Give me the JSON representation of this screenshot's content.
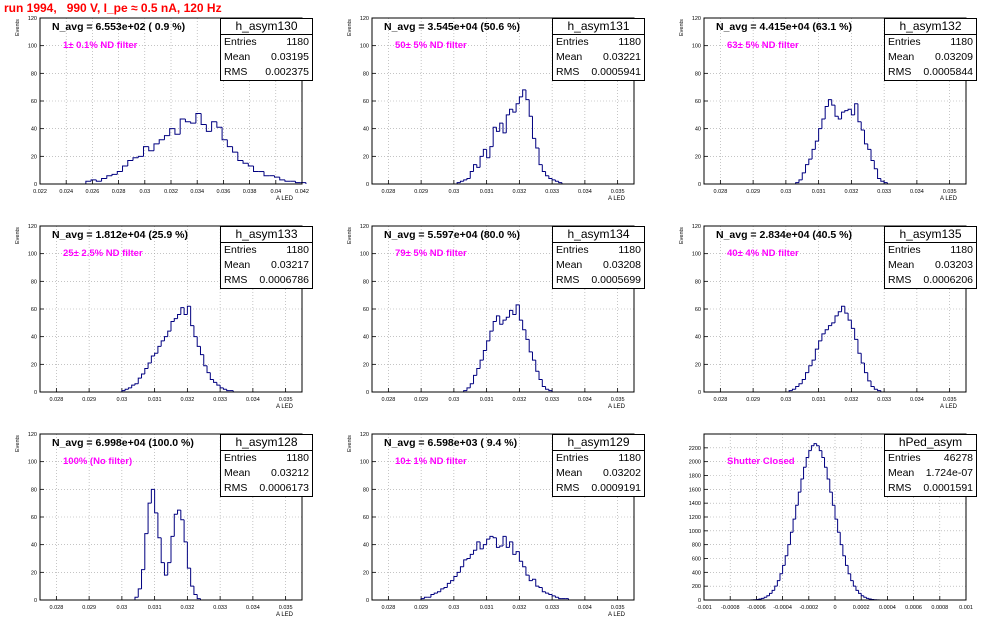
{
  "run_title": "run 1994,   990 V, I_pe ≈ 0.5 nA, 120 Hz",
  "colors": {
    "hist": "#000080",
    "title": "#ff0000",
    "filter_text": "#ff00ff",
    "grid": "#a0a0a0"
  },
  "chart_data": [
    {
      "type": "bar",
      "name": "h_asym130",
      "n_avg_text": "N_avg = 6.553e+02 ( 0.9 %)",
      "filter_text": "1± 0.1% ND filter",
      "stats": {
        "entries_label": "Entries",
        "entries": "1180",
        "mean_label": "Mean",
        "mean": "0.03195",
        "rms_label": "RMS",
        "rms": "0.002375"
      },
      "ylabel": "Events",
      "xlabel": "A_LED",
      "xlim": [
        0.022,
        0.042
      ],
      "ylim": [
        0,
        120
      ],
      "xticks": [
        "0.022",
        "0.024",
        "0.026",
        "0.028",
        "0.03",
        "0.032",
        "0.034",
        "0.036",
        "0.038",
        "0.04",
        "0.042"
      ],
      "yticks": [
        "0",
        "20",
        "40",
        "60",
        "80",
        "100",
        "120"
      ],
      "grid": true,
      "bin_start": 0.0255,
      "bin_width": 0.0004,
      "values": [
        2,
        3,
        2,
        4,
        6,
        7,
        9,
        13,
        17,
        19,
        20,
        27,
        24,
        29,
        32,
        35,
        40,
        36,
        47,
        45,
        44,
        51,
        43,
        38,
        45,
        41,
        32,
        27,
        23,
        17,
        15,
        13,
        9,
        9,
        6,
        6,
        5,
        3,
        2,
        2,
        1,
        1
      ]
    },
    {
      "type": "bar",
      "name": "h_asym131",
      "n_avg_text": "N_avg = 3.545e+04 (50.6 %)",
      "filter_text": "50± 5% ND filter",
      "stats": {
        "entries_label": "Entries",
        "entries": "1180",
        "mean_label": "Mean",
        "mean": "0.03221",
        "rms_label": "RMS",
        "rms": "0.0005941"
      },
      "ylabel": "Events",
      "xlabel": "A_LED",
      "xlim": [
        0.0275,
        0.0355
      ],
      "ylim": [
        0,
        120
      ],
      "xticks": [
        "0.028",
        "0.029",
        "0.03",
        "0.031",
        "0.032",
        "0.033",
        "0.034",
        "0.035"
      ],
      "yticks": [
        "0",
        "20",
        "40",
        "60",
        "80",
        "100",
        "120"
      ],
      "grid": true,
      "bin_start": 0.0301,
      "bin_width": 0.0001,
      "values": [
        1,
        2,
        3,
        4,
        9,
        14,
        12,
        20,
        25,
        19,
        27,
        41,
        38,
        44,
        37,
        50,
        54,
        52,
        58,
        63,
        68,
        61,
        49,
        33,
        26,
        14,
        9,
        6,
        4,
        3,
        2,
        1
      ]
    },
    {
      "type": "bar",
      "name": "h_asym132",
      "n_avg_text": "N_avg = 4.415e+04 (63.1 %)",
      "filter_text": "63± 5% ND filter",
      "stats": {
        "entries_label": "Entries",
        "entries": "1180",
        "mean_label": "Mean",
        "mean": "0.03209",
        "rms_label": "RMS",
        "rms": "0.0005844"
      },
      "ylabel": "Events",
      "xlabel": "A_LED",
      "xlim": [
        0.0275,
        0.0355
      ],
      "ylim": [
        0,
        120
      ],
      "xticks": [
        "0.028",
        "0.029",
        "0.03",
        "0.031",
        "0.032",
        "0.033",
        "0.034",
        "0.035"
      ],
      "yticks": [
        "0",
        "20",
        "40",
        "60",
        "80",
        "100",
        "120"
      ],
      "grid": true,
      "bin_start": 0.0303,
      "bin_width": 0.0001,
      "values": [
        1,
        3,
        8,
        14,
        18,
        25,
        31,
        40,
        47,
        56,
        61,
        57,
        49,
        47,
        52,
        53,
        54,
        50,
        58,
        45,
        39,
        29,
        25,
        17,
        11,
        4,
        2,
        1
      ]
    },
    {
      "type": "bar",
      "name": "h_asym133",
      "n_avg_text": "N_avg = 1.812e+04 (25.9 %)",
      "filter_text": "25± 2.5% ND filter",
      "stats": {
        "entries_label": "Entries",
        "entries": "1180",
        "mean_label": "Mean",
        "mean": "0.03217",
        "rms_label": "RMS",
        "rms": "0.0006786"
      },
      "ylabel": "Events",
      "xlabel": "A_LED",
      "xlim": [
        0.0275,
        0.0355
      ],
      "ylim": [
        0,
        120
      ],
      "xticks": [
        "0.028",
        "0.029",
        "0.03",
        "0.031",
        "0.032",
        "0.033",
        "0.034",
        "0.035"
      ],
      "yticks": [
        "0",
        "20",
        "40",
        "60",
        "80",
        "100",
        "120"
      ],
      "grid": true,
      "bin_start": 0.03,
      "bin_width": 0.0001,
      "values": [
        1,
        2,
        3,
        5,
        6,
        10,
        13,
        17,
        21,
        26,
        28,
        33,
        37,
        40,
        44,
        51,
        53,
        56,
        61,
        56,
        62,
        48,
        40,
        33,
        27,
        19,
        14,
        9,
        7,
        5,
        3,
        2,
        1,
        1
      ]
    },
    {
      "type": "bar",
      "name": "h_asym134",
      "n_avg_text": "N_avg = 5.597e+04 (80.0 %)",
      "filter_text": "79± 5% ND filter",
      "stats": {
        "entries_label": "Entries",
        "entries": "1180",
        "mean_label": "Mean",
        "mean": "0.03208",
        "rms_label": "RMS",
        "rms": "0.0005699"
      },
      "ylabel": "Events",
      "xlabel": "A_LED",
      "xlim": [
        0.0275,
        0.0355
      ],
      "ylim": [
        0,
        120
      ],
      "xticks": [
        "0.028",
        "0.029",
        "0.03",
        "0.031",
        "0.032",
        "0.033",
        "0.034",
        "0.035"
      ],
      "yticks": [
        "0",
        "20",
        "40",
        "60",
        "80",
        "100",
        "120"
      ],
      "grid": true,
      "bin_start": 0.0303,
      "bin_width": 0.0001,
      "values": [
        1,
        3,
        6,
        12,
        17,
        23,
        30,
        37,
        44,
        51,
        55,
        49,
        52,
        54,
        59,
        56,
        63,
        52,
        45,
        38,
        29,
        23,
        15,
        9,
        4,
        2,
        1
      ]
    },
    {
      "type": "bar",
      "name": "h_asym135",
      "n_avg_text": "N_avg = 2.834e+04 (40.5 %)",
      "filter_text": "40± 4% ND filter",
      "stats": {
        "entries_label": "Entries",
        "entries": "1180",
        "mean_label": "Mean",
        "mean": "0.03203",
        "rms_label": "RMS",
        "rms": "0.0006206"
      },
      "ylabel": "Events",
      "xlabel": "A_LED",
      "xlim": [
        0.0275,
        0.0355
      ],
      "ylim": [
        0,
        120
      ],
      "xticks": [
        "0.028",
        "0.029",
        "0.03",
        "0.031",
        "0.032",
        "0.033",
        "0.034",
        "0.035"
      ],
      "yticks": [
        "0",
        "20",
        "40",
        "60",
        "80",
        "100",
        "120"
      ],
      "grid": true,
      "bin_start": 0.0301,
      "bin_width": 0.0001,
      "values": [
        1,
        2,
        4,
        6,
        9,
        14,
        19,
        23,
        31,
        37,
        42,
        45,
        48,
        50,
        55,
        58,
        62,
        57,
        52,
        46,
        38,
        28,
        21,
        14,
        8,
        4,
        2,
        1
      ]
    },
    {
      "type": "bar",
      "name": "h_asym128",
      "n_avg_text": "N_avg = 6.998e+04 (100.0 %)",
      "filter_text": "100% (No filter)",
      "stats": {
        "entries_label": "Entries",
        "entries": "1180",
        "mean_label": "Mean",
        "mean": "0.03212",
        "rms_label": "RMS",
        "rms": "0.0006173"
      },
      "ylabel": "Events",
      "xlabel": "A_LED",
      "xlim": [
        0.0275,
        0.0355
      ],
      "ylim": [
        0,
        120
      ],
      "xticks": [
        "0.028",
        "0.029",
        "0.03",
        "0.031",
        "0.032",
        "0.033",
        "0.034",
        "0.035"
      ],
      "yticks": [
        "0",
        "20",
        "40",
        "60",
        "80",
        "100",
        "120"
      ],
      "grid": true,
      "bin_start": 0.0304,
      "bin_width": 0.0001,
      "values": [
        2,
        8,
        22,
        48,
        70,
        80,
        63,
        45,
        27,
        18,
        27,
        46,
        62,
        65,
        58,
        42,
        23,
        10,
        4,
        1
      ]
    },
    {
      "type": "bar",
      "name": "h_asym129",
      "n_avg_text": "N_avg = 6.598e+03 ( 9.4 %)",
      "filter_text": "10± 1% ND filter",
      "stats": {
        "entries_label": "Entries",
        "entries": "1180",
        "mean_label": "Mean",
        "mean": "0.03202",
        "rms_label": "RMS",
        "rms": "0.0009191"
      },
      "ylabel": "Events",
      "xlabel": "A_LED",
      "xlim": [
        0.0275,
        0.0355
      ],
      "ylim": [
        0,
        120
      ],
      "xticks": [
        "0.028",
        "0.029",
        "0.03",
        "0.031",
        "0.032",
        "0.033",
        "0.034",
        "0.035"
      ],
      "yticks": [
        "0",
        "20",
        "40",
        "60",
        "80",
        "100",
        "120"
      ],
      "grid": true,
      "bin_start": 0.029,
      "bin_width": 0.0001,
      "values": [
        1,
        2,
        2,
        4,
        5,
        6,
        8,
        9,
        12,
        14,
        17,
        20,
        24,
        29,
        30,
        33,
        36,
        42,
        37,
        40,
        44,
        46,
        45,
        38,
        39,
        46,
        38,
        42,
        33,
        35,
        28,
        24,
        18,
        14,
        15,
        10,
        9,
        6,
        5,
        4,
        3,
        2,
        1,
        1,
        1
      ]
    },
    {
      "type": "bar",
      "name": "hPed_asym",
      "n_avg_text": "",
      "filter_text": "Shutter Closed",
      "stats": {
        "entries_label": "Entries",
        "entries": "46278",
        "mean_label": "Mean",
        "mean": "1.724e-07",
        "rms_label": "RMS",
        "rms": "0.0001591"
      },
      "ylabel": "",
      "xlabel": "",
      "xlim": [
        -0.001,
        0.001
      ],
      "ylim": [
        0,
        2400
      ],
      "xticks": [
        "-0.001",
        "-0.0008",
        "-0.0006",
        "-0.0004",
        "-0.0002",
        "0",
        "0.0002",
        "0.0004",
        "0.0006",
        "0.0008",
        "0.001"
      ],
      "yticks": [
        "0",
        "200",
        "400",
        "600",
        "800",
        "1000",
        "1200",
        "1400",
        "1600",
        "1800",
        "2000",
        "2200"
      ],
      "grid": true,
      "bin_start": -0.00064,
      "bin_width": 2e-05,
      "values": [
        2,
        4,
        8,
        14,
        24,
        40,
        62,
        95,
        140,
        200,
        280,
        380,
        500,
        640,
        800,
        980,
        1170,
        1370,
        1560,
        1750,
        1920,
        2060,
        2160,
        2230,
        2260,
        2230,
        2160,
        2060,
        1920,
        1750,
        1560,
        1370,
        1170,
        980,
        800,
        640,
        500,
        380,
        280,
        200,
        140,
        95,
        62,
        40,
        24,
        14,
        8,
        4,
        2
      ]
    }
  ]
}
